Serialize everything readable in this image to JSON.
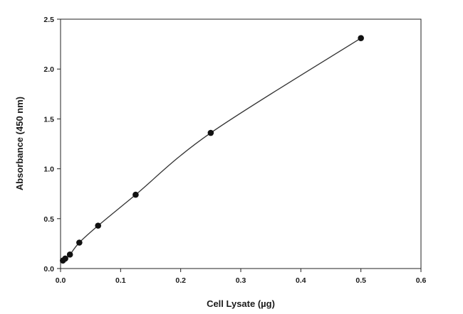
{
  "chart_data": {
    "type": "scatter",
    "title": "",
    "xlabel": "Cell Lysate (µg)",
    "ylabel": "Absorbance (450 nm)",
    "xlim": [
      0.0,
      0.6
    ],
    "ylim": [
      0.0,
      2.5
    ],
    "x_ticks": [
      "0.0",
      "0.1",
      "0.2",
      "0.3",
      "0.4",
      "0.5",
      "0.6"
    ],
    "y_ticks": [
      "0.0",
      "0.5",
      "1.0",
      "1.5",
      "2.0",
      "2.5"
    ],
    "grid": false,
    "legend": "none",
    "series": [
      {
        "points": [
          {
            "x": 0.0039,
            "y": 0.08
          },
          {
            "x": 0.0078,
            "y": 0.1
          },
          {
            "x": 0.0156,
            "y": 0.14
          },
          {
            "x": 0.03125,
            "y": 0.26
          },
          {
            "x": 0.0625,
            "y": 0.43
          },
          {
            "x": 0.125,
            "y": 0.74
          },
          {
            "x": 0.25,
            "y": 1.36
          },
          {
            "x": 0.5,
            "y": 2.31
          }
        ],
        "marker": "filled-circle",
        "color": "#111111",
        "fit_line": true
      }
    ]
  }
}
